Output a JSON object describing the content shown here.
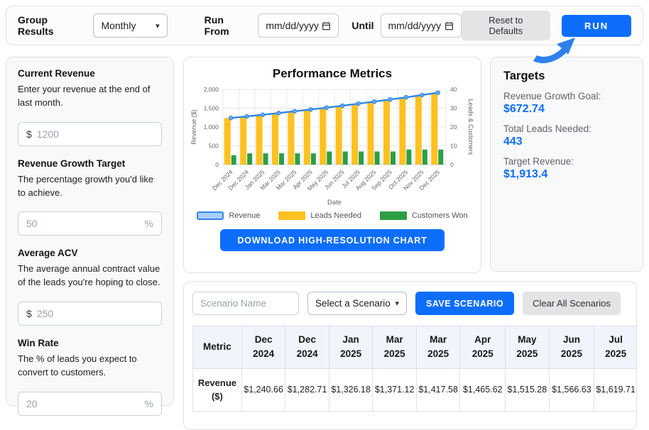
{
  "topbar": {
    "group_results_label": "Group Results",
    "group_by_value": "Monthly",
    "run_from_label": "Run From",
    "run_from_placeholder": "mm/dd/yyyy",
    "until_label": "Until",
    "until_placeholder": "mm/dd/yyyy",
    "reset_label": "Reset to Defaults",
    "run_label": "RUN"
  },
  "sidebar": {
    "fields": [
      {
        "label": "Current Revenue",
        "description": "Enter your revenue at the end of last month.",
        "prefix": "$",
        "placeholder": "1200",
        "suffix": ""
      },
      {
        "label": "Revenue Growth Target",
        "description": "The percentage growth you'd like to achieve.",
        "prefix": "",
        "placeholder": "50",
        "suffix": "%"
      },
      {
        "label": "Average ACV",
        "description": "The average annual contract value of the leads you're hoping to close.",
        "prefix": "$",
        "placeholder": "250",
        "suffix": ""
      },
      {
        "label": "Win Rate",
        "description": "The % of leads you expect to convert to customers.",
        "prefix": "",
        "placeholder": "20",
        "suffix": "%"
      }
    ]
  },
  "chart_card": {
    "download_label": "DOWNLOAD HIGH-RESOLUTION CHART"
  },
  "chart_data": {
    "type": "bar",
    "title": "Performance Metrics",
    "xlabel": "Date",
    "ylabel_left": "Revenue ($)",
    "ylabel_right": "Leads & Customers",
    "ylim_left": [
      0,
      2000
    ],
    "ylim_right": [
      0,
      40
    ],
    "yticks_left": [
      "0",
      "500",
      "1,000",
      "1,500",
      "2,000"
    ],
    "yticks_right": [
      "0",
      "10",
      "20",
      "30",
      "40"
    ],
    "grid": true,
    "legend_position": "bottom",
    "categories": [
      "Dec 2024",
      "Dec 2024",
      "Jan 2025",
      "Mar 2025",
      "Mar 2025",
      "Apr 2025",
      "May 2025",
      "Jun 2025",
      "Jul 2025",
      "Aug 2025",
      "Sep 2025",
      "Oct 2025",
      "Nov 2025",
      "Dec 2025"
    ],
    "series": [
      {
        "name": "Revenue",
        "type": "line",
        "axis": "left",
        "color": "#2f86eb",
        "values": [
          1240.66,
          1282.71,
          1326.18,
          1371.12,
          1417.58,
          1465.62,
          1515.28,
          1566.63,
          1619.71,
          1674.6,
          1731.32,
          1789.97,
          1850.6,
          1913.4
        ]
      },
      {
        "name": "Leads Needed",
        "type": "bar",
        "axis": "right",
        "color": "#ffc120",
        "values": [
          24.8,
          25.7,
          26.5,
          27.4,
          28.4,
          29.3,
          30.3,
          31.3,
          32.4,
          33.5,
          34.6,
          35.8,
          37.0,
          38.3
        ]
      },
      {
        "name": "Customers Won",
        "type": "bar",
        "axis": "right",
        "color": "#2e9e44",
        "values": [
          5,
          6,
          6,
          6,
          6,
          6,
          7,
          7,
          7,
          7,
          7,
          8,
          8,
          8
        ]
      }
    ]
  },
  "targets": {
    "title": "Targets",
    "items": [
      {
        "label": "Revenue Growth Goal:",
        "value": "$672.74"
      },
      {
        "label": "Total Leads Needed:",
        "value": "443"
      },
      {
        "label": "Target Revenue:",
        "value": "$1,913.4"
      }
    ]
  },
  "scenario": {
    "name_placeholder": "Scenario Name",
    "select_value": "Select a Scenario",
    "save_label": "SAVE SCENARIO",
    "clear_label": "Clear All Scenarios",
    "table": {
      "headers": [
        "Metric",
        "Dec 2024",
        "Dec 2024",
        "Jan 2025",
        "Mar 2025",
        "Mar 2025",
        "Apr 2025",
        "May 2025",
        "Jun 2025",
        "Jul 2025"
      ],
      "rows": [
        {
          "label": "Revenue ($)",
          "values": [
            "$1,240.66",
            "$1,282.71",
            "$1,326.18",
            "$1,371.12",
            "$1,417.58",
            "$1,465.62",
            "$1,515.28",
            "$1,566.63",
            "$1,619.71"
          ]
        }
      ]
    }
  },
  "colors": {
    "accent": "#0d6efd",
    "bar_yellow": "#ffc120",
    "bar_green": "#2e9e44",
    "line_blue": "#2f86eb"
  }
}
